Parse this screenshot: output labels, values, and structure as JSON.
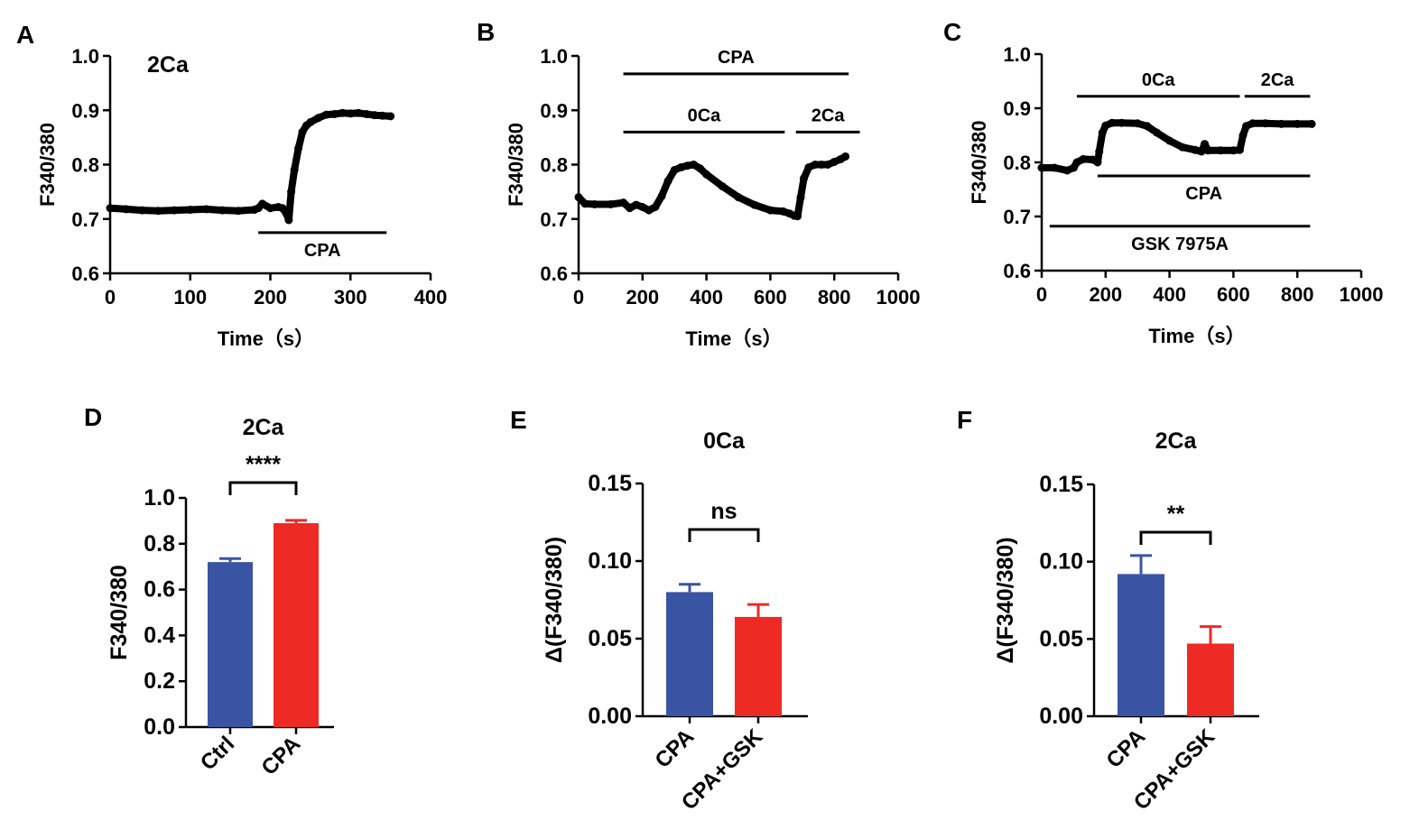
{
  "chart_data": [
    {
      "panel": "A",
      "type": "line",
      "xlabel": "Time（s）",
      "ylabel": "F340/380",
      "xlim": [
        0,
        400
      ],
      "ylim": [
        0.6,
        1.0
      ],
      "xticks": [
        0,
        100,
        200,
        300,
        400
      ],
      "yticks": [
        0.6,
        0.7,
        0.8,
        0.9,
        1.0
      ],
      "ytick_labels": [
        "0.6",
        "0.7",
        "0.8",
        "0.9",
        "1.0"
      ],
      "annotations": [
        {
          "text": "2Ca",
          "x": 200,
          "y": 0.98
        }
      ],
      "treatment_bars": [
        {
          "label": "CPA",
          "x0": 185,
          "x1": 345,
          "y": 0.675,
          "label_pos": "below"
        }
      ],
      "series": [
        {
          "name": "trace",
          "x": [
            0,
            20,
            40,
            60,
            80,
            100,
            120,
            140,
            160,
            180,
            185,
            190,
            200,
            210,
            215,
            220,
            223,
            226,
            230,
            235,
            240,
            245,
            250,
            260,
            270,
            280,
            290,
            300,
            310,
            320,
            330,
            340,
            350
          ],
          "y": [
            0.72,
            0.718,
            0.716,
            0.715,
            0.716,
            0.717,
            0.718,
            0.716,
            0.715,
            0.717,
            0.72,
            0.728,
            0.72,
            0.722,
            0.72,
            0.71,
            0.698,
            0.75,
            0.79,
            0.83,
            0.86,
            0.872,
            0.878,
            0.886,
            0.892,
            0.893,
            0.895,
            0.894,
            0.895,
            0.893,
            0.891,
            0.89,
            0.889
          ]
        }
      ]
    },
    {
      "panel": "B",
      "type": "line",
      "xlabel": "Time（s）",
      "ylabel": "F340/380",
      "xlim": [
        0,
        1000
      ],
      "ylim": [
        0.6,
        1.0
      ],
      "xticks": [
        0,
        200,
        400,
        600,
        800,
        1000
      ],
      "yticks": [
        0.6,
        0.7,
        0.8,
        0.9,
        1.0
      ],
      "ytick_labels": [
        "0.6",
        "0.7",
        "0.8",
        "0.9",
        "1.0"
      ],
      "treatment_bars": [
        {
          "label": "CPA",
          "x0": 140,
          "x1": 845,
          "y": 0.967,
          "label_pos": "above"
        },
        {
          "label": "0Ca",
          "x0": 140,
          "x1": 645,
          "y": 0.86,
          "label_pos": "above"
        },
        {
          "label": "2Ca",
          "x0": 680,
          "x1": 880,
          "y": 0.86,
          "label_pos": "above"
        }
      ],
      "series": [
        {
          "name": "trace",
          "x": [
            0,
            20,
            50,
            100,
            140,
            160,
            180,
            200,
            220,
            240,
            260,
            280,
            300,
            320,
            340,
            360,
            380,
            400,
            450,
            500,
            550,
            600,
            640,
            660,
            675,
            685,
            695,
            705,
            720,
            740,
            760,
            780,
            800,
            820,
            835
          ],
          "y": [
            0.74,
            0.728,
            0.727,
            0.727,
            0.73,
            0.72,
            0.726,
            0.722,
            0.716,
            0.722,
            0.742,
            0.77,
            0.79,
            0.795,
            0.798,
            0.8,
            0.793,
            0.782,
            0.76,
            0.74,
            0.726,
            0.716,
            0.714,
            0.71,
            0.706,
            0.705,
            0.74,
            0.775,
            0.795,
            0.8,
            0.8,
            0.8,
            0.805,
            0.81,
            0.815
          ]
        }
      ]
    },
    {
      "panel": "C",
      "type": "line",
      "xlabel": "Time（s）",
      "ylabel": "F340/380",
      "xlim": [
        0,
        1000
      ],
      "ylim": [
        0.6,
        1.0
      ],
      "xticks": [
        0,
        200,
        400,
        600,
        800,
        1000
      ],
      "yticks": [
        0.6,
        0.7,
        0.8,
        0.9,
        1.0
      ],
      "ytick_labels": [
        "0.6",
        "0.7",
        "0.8",
        "0.9",
        "1.0"
      ],
      "treatment_bars": [
        {
          "label": "0Ca",
          "x0": 110,
          "x1": 620,
          "y": 0.922,
          "label_pos": "above"
        },
        {
          "label": "2Ca",
          "x0": 635,
          "x1": 840,
          "y": 0.922,
          "label_pos": "above"
        },
        {
          "label": "CPA",
          "x0": 175,
          "x1": 840,
          "y": 0.775,
          "label_pos": "below"
        },
        {
          "label": "GSK 7975A",
          "x0": 25,
          "x1": 840,
          "y": 0.682,
          "label_pos": "below"
        }
      ],
      "series": [
        {
          "name": "trace",
          "x": [
            0,
            40,
            80,
            100,
            110,
            130,
            160,
            175,
            180,
            190,
            200,
            220,
            250,
            300,
            330,
            360,
            400,
            440,
            480,
            500,
            510,
            520,
            560,
            600,
            620,
            630,
            640,
            660,
            700,
            750,
            800,
            845
          ],
          "y": [
            0.79,
            0.79,
            0.785,
            0.79,
            0.8,
            0.806,
            0.805,
            0.8,
            0.82,
            0.855,
            0.868,
            0.873,
            0.873,
            0.872,
            0.867,
            0.855,
            0.84,
            0.828,
            0.823,
            0.82,
            0.834,
            0.822,
            0.822,
            0.822,
            0.823,
            0.85,
            0.867,
            0.872,
            0.872,
            0.871,
            0.871,
            0.871
          ]
        }
      ]
    },
    {
      "panel": "D",
      "type": "bar",
      "title": "2Ca",
      "ylabel": "F340/380",
      "ylim": [
        0,
        1.0
      ],
      "yticks": [
        0,
        0.2,
        0.4,
        0.6,
        0.8,
        1.0
      ],
      "ytick_labels": [
        "0.0",
        "0.2",
        "0.4",
        "0.6",
        "0.8",
        "1.0"
      ],
      "categories": [
        "Ctrl",
        "CPA"
      ],
      "values": [
        0.72,
        0.89
      ],
      "errors": [
        0.015,
        0.012
      ],
      "colors": [
        "#3a54a4",
        "#ee2a24"
      ],
      "significance": "****"
    },
    {
      "panel": "E",
      "type": "bar",
      "title": "0Ca",
      "ylabel": "Δ(F340/380)",
      "ylim": [
        0,
        0.15
      ],
      "yticks": [
        0,
        0.05,
        0.1,
        0.15
      ],
      "ytick_labels": [
        "0.00",
        "0.05",
        "0.10",
        "0.15"
      ],
      "categories": [
        "CPA",
        "CPA+GSK"
      ],
      "values": [
        0.08,
        0.064
      ],
      "errors": [
        0.005,
        0.008
      ],
      "colors": [
        "#3a54a4",
        "#ee2a24"
      ],
      "significance": "ns"
    },
    {
      "panel": "F",
      "type": "bar",
      "title": "2Ca",
      "ylabel": "Δ(F340/380)",
      "ylim": [
        0,
        0.15
      ],
      "yticks": [
        0,
        0.05,
        0.1,
        0.15
      ],
      "ytick_labels": [
        "0.00",
        "0.05",
        "0.10",
        "0.15"
      ],
      "categories": [
        "CPA",
        "CPA+GSK"
      ],
      "values": [
        0.092,
        0.047
      ],
      "errors": [
        0.012,
        0.011
      ],
      "colors": [
        "#3a54a4",
        "#ee2a24"
      ],
      "significance": "**"
    }
  ]
}
